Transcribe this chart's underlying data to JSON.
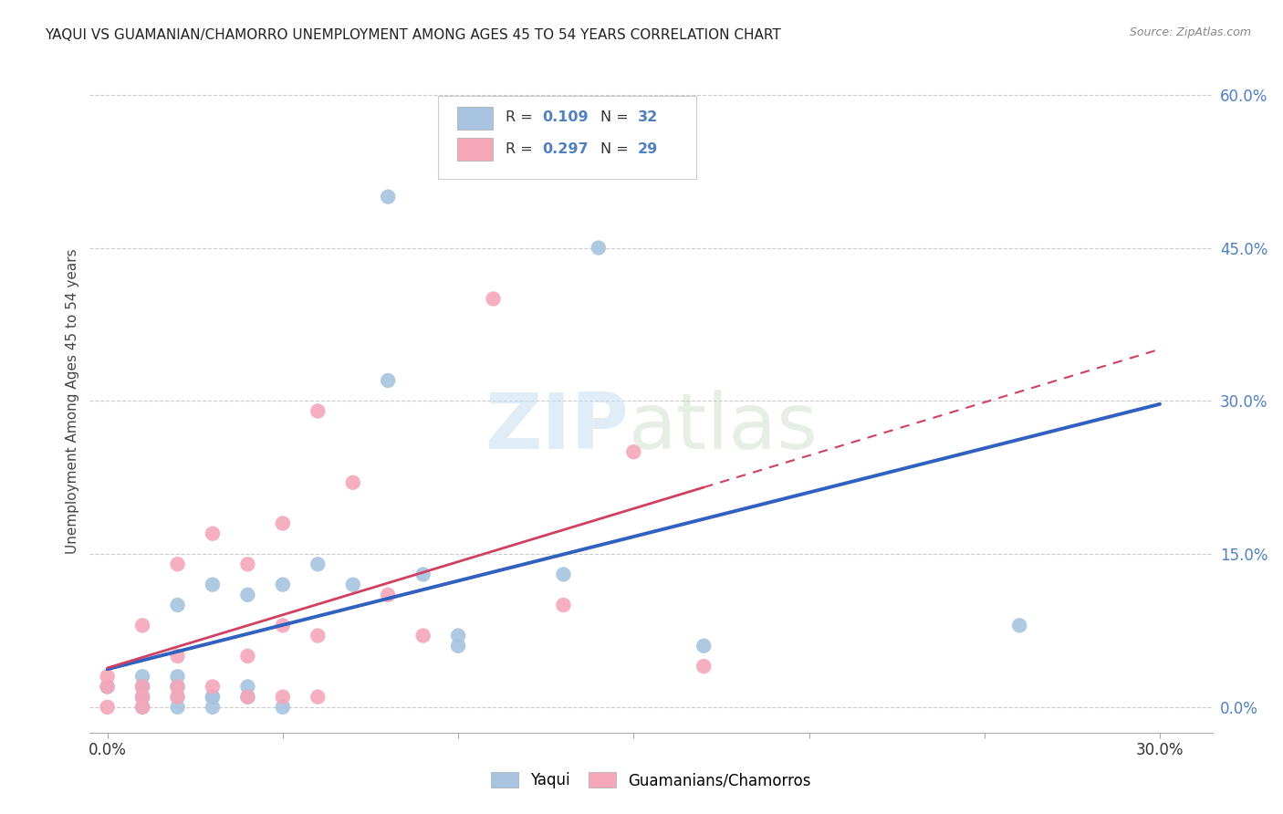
{
  "title": "YAQUI VS GUAMANIAN/CHAMORRO UNEMPLOYMENT AMONG AGES 45 TO 54 YEARS CORRELATION CHART",
  "source": "Source: ZipAtlas.com",
  "ylabel": "Unemployment Among Ages 45 to 54 years",
  "ylabel_right_ticks": [
    "0.0%",
    "15.0%",
    "30.0%",
    "45.0%",
    "60.0%"
  ],
  "ylabel_right_vals": [
    0.0,
    0.15,
    0.3,
    0.45,
    0.6
  ],
  "xlim": [
    -0.005,
    0.315
  ],
  "ylim": [
    -0.025,
    0.625
  ],
  "plot_xlim": [
    0.0,
    0.3
  ],
  "plot_ylim": [
    0.0,
    0.6
  ],
  "xticks": [
    0.0,
    0.05,
    0.1,
    0.15,
    0.2,
    0.25,
    0.3
  ],
  "xtick_labels": [
    "0.0%",
    "",
    "",
    "",
    "",
    "",
    "30.0%"
  ],
  "blue_scatter_color": "#a8c4e0",
  "pink_scatter_color": "#f4a7b9",
  "blue_line_color": "#3060c0",
  "pink_line_color": "#d04060",
  "grid_color": "#cccccc",
  "title_color": "#222222",
  "source_color": "#888888",
  "tick_label_color": "#5080c0",
  "legend_r1": "0.109",
  "legend_n1": "32",
  "legend_r2": "0.297",
  "legend_n2": "29",
  "yaqui_x": [
    0.0,
    0.01,
    0.01,
    0.01,
    0.01,
    0.01,
    0.01,
    0.02,
    0.02,
    0.02,
    0.02,
    0.02,
    0.03,
    0.03,
    0.03,
    0.03,
    0.04,
    0.04,
    0.04,
    0.05,
    0.05,
    0.06,
    0.07,
    0.08,
    0.08,
    0.09,
    0.1,
    0.1,
    0.13,
    0.14,
    0.17,
    0.26
  ],
  "yaqui_y": [
    0.02,
    0.0,
    0.01,
    0.01,
    0.02,
    0.02,
    0.03,
    0.0,
    0.01,
    0.02,
    0.03,
    0.1,
    0.0,
    0.01,
    0.01,
    0.12,
    0.01,
    0.02,
    0.11,
    0.0,
    0.12,
    0.14,
    0.12,
    0.32,
    0.5,
    0.13,
    0.06,
    0.07,
    0.13,
    0.45,
    0.06,
    0.08
  ],
  "chamorro_x": [
    0.0,
    0.0,
    0.0,
    0.01,
    0.01,
    0.01,
    0.01,
    0.02,
    0.02,
    0.02,
    0.02,
    0.03,
    0.03,
    0.04,
    0.04,
    0.04,
    0.05,
    0.05,
    0.05,
    0.06,
    0.06,
    0.06,
    0.07,
    0.08,
    0.09,
    0.11,
    0.13,
    0.15,
    0.17
  ],
  "chamorro_y": [
    0.0,
    0.02,
    0.03,
    0.0,
    0.01,
    0.02,
    0.08,
    0.01,
    0.02,
    0.05,
    0.14,
    0.02,
    0.17,
    0.01,
    0.05,
    0.14,
    0.01,
    0.08,
    0.18,
    0.01,
    0.07,
    0.29,
    0.22,
    0.11,
    0.07,
    0.4,
    0.1,
    0.25,
    0.04
  ]
}
